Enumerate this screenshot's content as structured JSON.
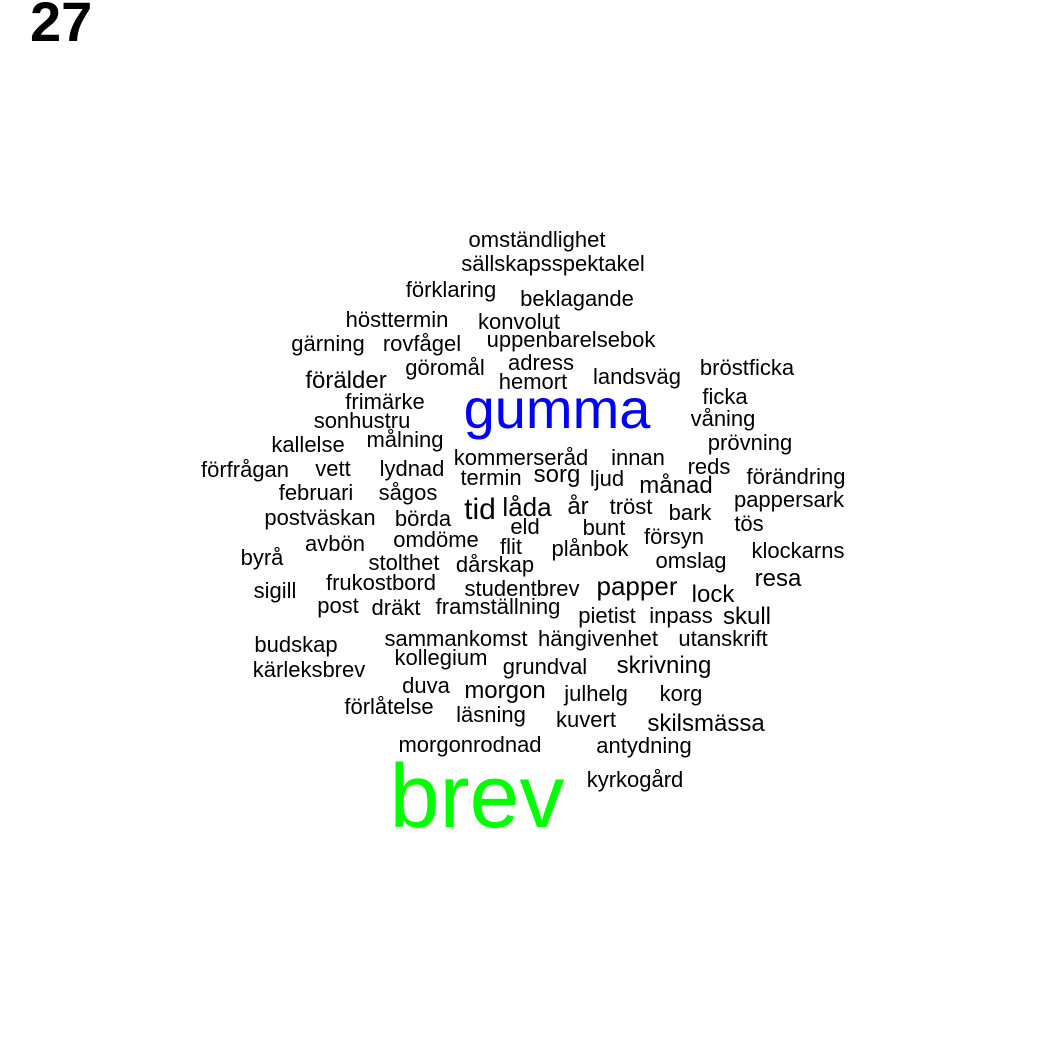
{
  "page_number": "27",
  "colors": {
    "default": "#000000",
    "gumma": "#0000ff",
    "brev": "#00ff00"
  },
  "words": [
    "omständlighet",
    "sällskapsspektakel",
    "förklaring",
    "beklagande",
    "hösttermin",
    "konvolut",
    "gärning",
    "rovfågel",
    "uppenbarelsebok",
    "göromål",
    "adress",
    "hemort",
    "landsväg",
    "bröstficka",
    "förälder",
    "frimärke",
    "gumma",
    "ficka",
    "sonhustru",
    "våning",
    "kallelse",
    "målning",
    "prövning",
    "kommerseråd",
    "innan",
    "förfrågan",
    "vett",
    "lydnad",
    "reds",
    "termin",
    "sorg",
    "ljud",
    "förändring",
    "månad",
    "februari",
    "sågos",
    "pappersark",
    "tid",
    "låda",
    "år",
    "tröst",
    "bark",
    "postväskan",
    "börda",
    "eld",
    "bunt",
    "tös",
    "avbön",
    "omdöme",
    "flit",
    "försyn",
    "byrå",
    "plånbok",
    "klockarns",
    "stolthet",
    "dårskap",
    "omslag",
    "resa",
    "frukostbord",
    "studentbrev",
    "papper",
    "sigill",
    "lock",
    "post",
    "dräkt",
    "framställning",
    "pietist",
    "inpass",
    "skull",
    "budskap",
    "sammankomst",
    "hängivenhet",
    "utanskrift",
    "kollegium",
    "kärleksbrev",
    "grundval",
    "skrivning",
    "duva",
    "morgon",
    "julhelg",
    "korg",
    "förlåtelse",
    "läsning",
    "kuvert",
    "skilsmässa",
    "morgonrodnad",
    "antydning",
    "kyrkogård",
    "brev"
  ]
}
